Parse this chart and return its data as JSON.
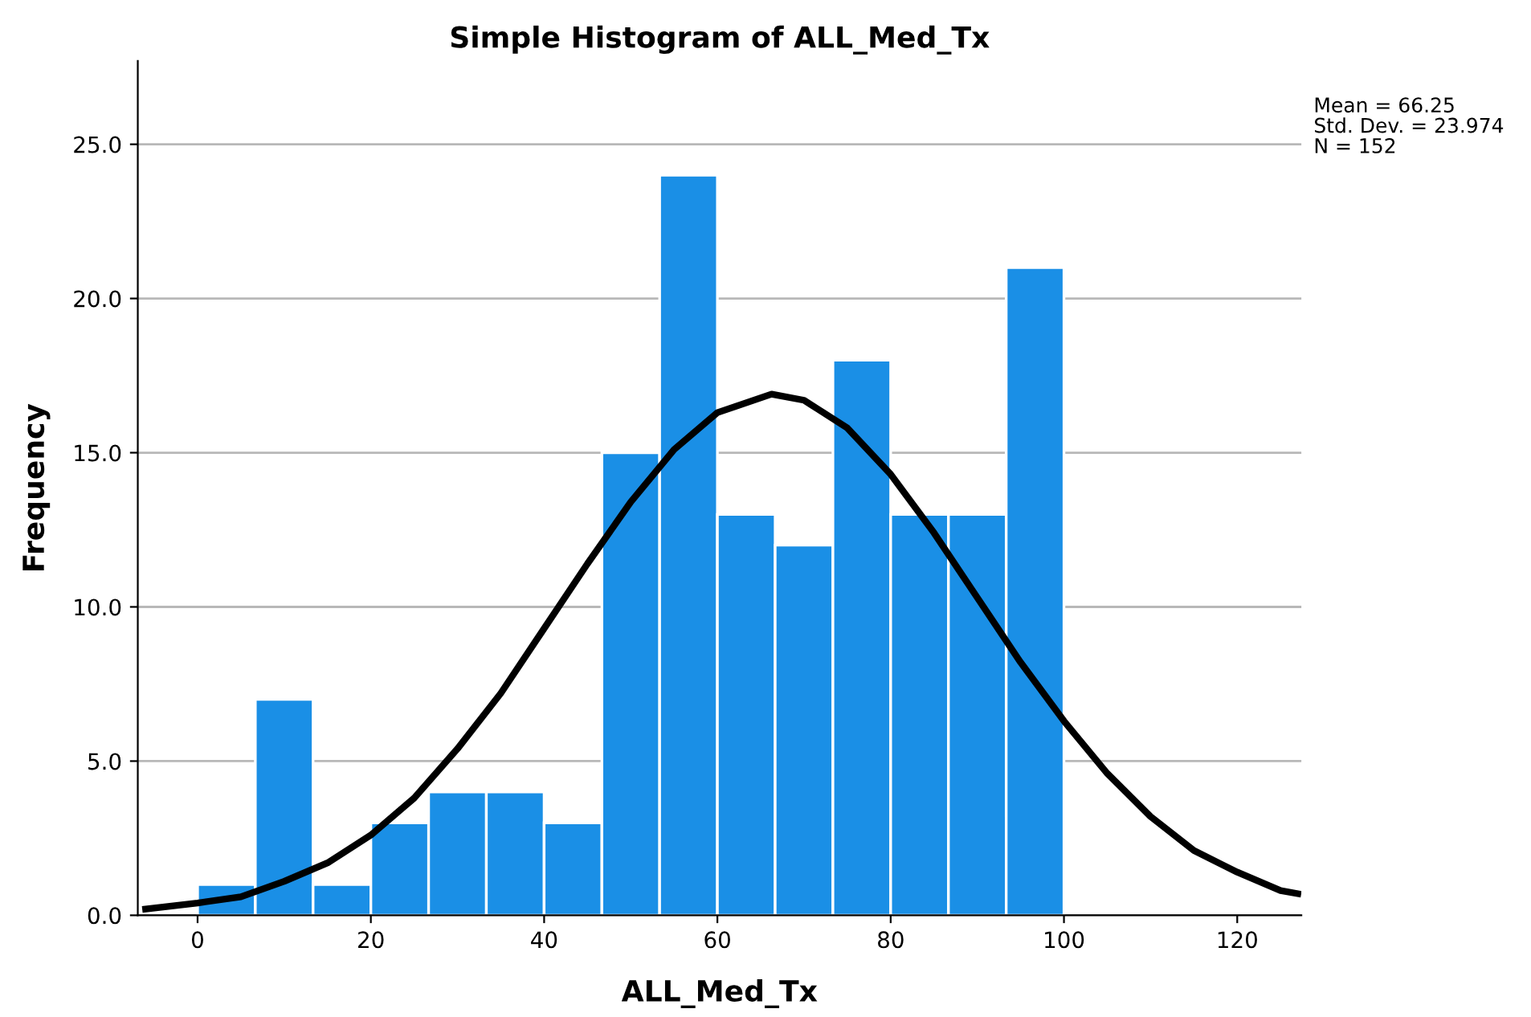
{
  "chart_data": {
    "type": "histogram",
    "title": "Simple Histogram of ALL_Med_Tx",
    "xlabel": "ALL_Med_Tx",
    "ylabel": "Frequency",
    "bins": [
      0,
      6.667,
      13.333,
      20,
      26.667,
      33.333,
      40,
      46.667,
      53.333,
      60,
      66.667,
      73.333,
      80,
      86.667,
      93.333,
      100
    ],
    "series": [
      {
        "color": "#1a8fe6",
        "values": [
          1,
          7,
          1,
          3,
          4,
          4,
          3,
          15,
          24,
          13,
          12,
          18,
          13,
          13,
          21
        ]
      },
      {
        "type": "line",
        "color": "#000000",
        "x": [
          -6,
          0,
          5,
          10,
          15,
          20,
          25,
          30,
          35,
          40,
          45,
          50,
          55,
          60,
          66.25,
          70,
          75,
          80,
          85,
          90,
          95,
          100,
          105,
          110,
          115,
          120,
          125,
          127
        ],
        "values": [
          0.2,
          0.4,
          0.6,
          1.1,
          1.7,
          2.6,
          3.8,
          5.4,
          7.2,
          9.3,
          11.4,
          13.4,
          15.1,
          16.3,
          16.9,
          16.7,
          15.8,
          14.3,
          12.4,
          10.3,
          8.2,
          6.3,
          4.6,
          3.2,
          2.1,
          1.4,
          0.8,
          0.7
        ]
      }
    ],
    "xlim": [
      -6.9,
      127.4
    ],
    "xticks": [
      0,
      20,
      40,
      60,
      80,
      100,
      120
    ],
    "ylim": [
      0,
      27.7
    ],
    "yticks": [
      {
        "value": 0,
        "label": "0.0"
      },
      {
        "value": 5,
        "label": "5.0"
      },
      {
        "value": 10,
        "label": "10.0"
      },
      {
        "value": 15,
        "label": "15.0"
      },
      {
        "value": 20,
        "label": "20.0"
      },
      {
        "value": 25,
        "label": "25.0"
      }
    ],
    "grid": "y",
    "annotations": [
      "Mean = 66.25",
      "Std. Dev. = 23.974",
      "N = 152"
    ]
  }
}
